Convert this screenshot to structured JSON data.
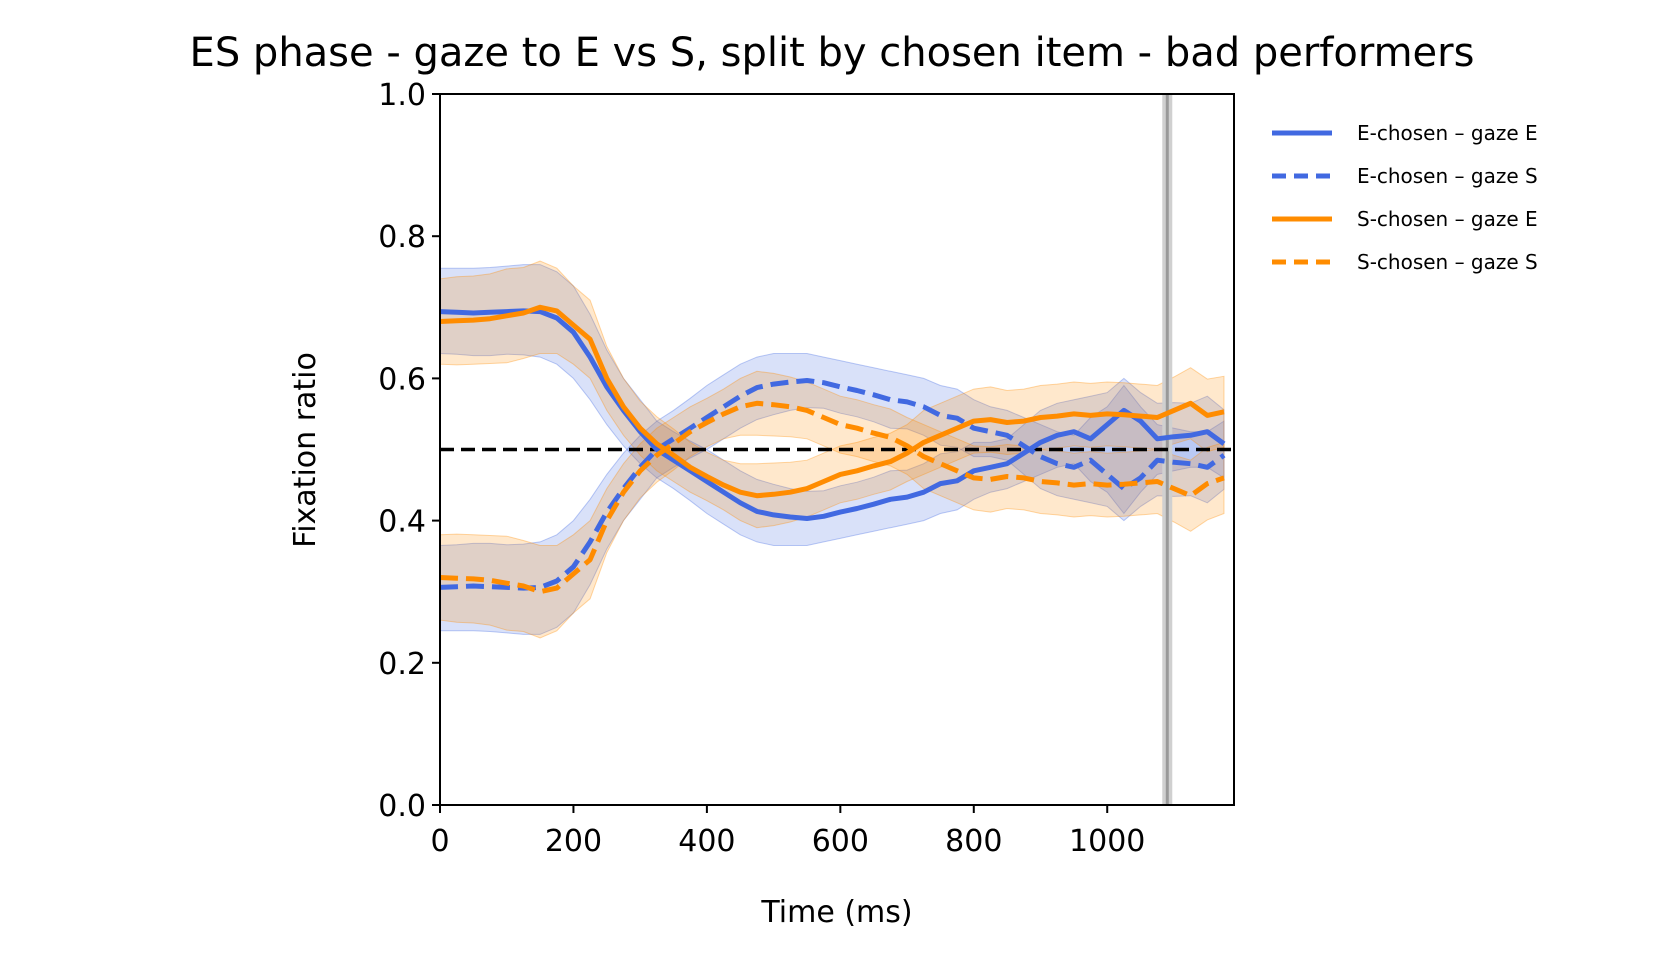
{
  "chart_data": {
    "type": "line",
    "title": "ES phase - gaze to E vs S, split by chosen item - bad performers",
    "xlabel": "Time (ms)",
    "ylabel": "Fixation ratio",
    "xlim": [
      0,
      1190
    ],
    "ylim": [
      0,
      1
    ],
    "xticks": [
      0,
      200,
      400,
      600,
      800,
      1000
    ],
    "xtick_labels": [
      "0",
      "200",
      "400",
      "600",
      "800",
      "1000"
    ],
    "yticks": [
      0,
      0.2,
      0.4,
      0.6,
      0.8,
      1.0
    ],
    "ytick_labels": [
      "0.0",
      "0.2",
      "0.4",
      "0.6",
      "0.8",
      "1.0"
    ],
    "grid": false,
    "legend_position": "outside-right",
    "reference_line": {
      "y": 0.5,
      "style": "dashed",
      "color": "#000000"
    },
    "vertical_marker": {
      "x": 1090,
      "color": "#999999"
    },
    "x": [
      0,
      25,
      50,
      75,
      100,
      125,
      150,
      175,
      200,
      225,
      250,
      275,
      300,
      325,
      350,
      375,
      400,
      425,
      450,
      475,
      500,
      525,
      550,
      575,
      600,
      625,
      650,
      675,
      700,
      725,
      750,
      775,
      800,
      825,
      850,
      875,
      900,
      925,
      950,
      975,
      1000,
      1025,
      1050,
      1075,
      1100,
      1125,
      1150,
      1175
    ],
    "series": [
      {
        "name": "E-chosen – gaze E",
        "color": "#4169E1",
        "dash": "solid",
        "values": [
          0.694,
          0.693,
          0.692,
          0.693,
          0.694,
          0.695,
          0.694,
          0.685,
          0.665,
          0.63,
          0.588,
          0.555,
          0.525,
          0.5,
          0.485,
          0.47,
          0.455,
          0.44,
          0.425,
          0.413,
          0.408,
          0.405,
          0.403,
          0.406,
          0.412,
          0.417,
          0.423,
          0.43,
          0.433,
          0.44,
          0.452,
          0.456,
          0.47,
          0.475,
          0.48,
          0.495,
          0.51,
          0.52,
          0.525,
          0.515,
          0.535,
          0.555,
          0.54,
          0.515,
          0.518,
          0.52,
          0.525,
          0.508
        ],
        "lower": [
          0.635,
          0.634,
          0.632,
          0.632,
          0.634,
          0.633,
          0.63,
          0.62,
          0.6,
          0.57,
          0.535,
          0.505,
          0.48,
          0.46,
          0.445,
          0.428,
          0.41,
          0.395,
          0.38,
          0.37,
          0.365,
          0.365,
          0.365,
          0.37,
          0.375,
          0.38,
          0.385,
          0.39,
          0.395,
          0.4,
          0.41,
          0.415,
          0.43,
          0.44,
          0.445,
          0.455,
          0.465,
          0.475,
          0.48,
          0.455,
          0.44,
          0.41,
          0.44,
          0.465,
          0.47,
          0.475,
          0.475,
          0.46
        ],
        "upper": [
          0.755,
          0.755,
          0.755,
          0.756,
          0.758,
          0.76,
          0.76,
          0.75,
          0.73,
          0.69,
          0.64,
          0.6,
          0.57,
          0.54,
          0.525,
          0.512,
          0.5,
          0.485,
          0.47,
          0.458,
          0.451,
          0.445,
          0.441,
          0.442,
          0.449,
          0.454,
          0.461,
          0.47,
          0.471,
          0.48,
          0.494,
          0.497,
          0.51,
          0.51,
          0.515,
          0.535,
          0.555,
          0.565,
          0.57,
          0.575,
          0.58,
          0.6,
          0.58,
          0.565,
          0.566,
          0.565,
          0.575,
          0.556
        ]
      },
      {
        "name": "E-chosen – gaze S",
        "color": "#4169E1",
        "dash": "dashed",
        "values": [
          0.306,
          0.307,
          0.308,
          0.307,
          0.306,
          0.305,
          0.306,
          0.315,
          0.335,
          0.37,
          0.412,
          0.445,
          0.475,
          0.5,
          0.515,
          0.53,
          0.545,
          0.56,
          0.575,
          0.587,
          0.592,
          0.595,
          0.597,
          0.594,
          0.588,
          0.583,
          0.577,
          0.57,
          0.567,
          0.56,
          0.548,
          0.544,
          0.53,
          0.525,
          0.52,
          0.505,
          0.49,
          0.48,
          0.475,
          0.485,
          0.465,
          0.445,
          0.46,
          0.485,
          0.482,
          0.48,
          0.475,
          0.492
        ],
        "lower": [
          0.245,
          0.245,
          0.245,
          0.244,
          0.242,
          0.24,
          0.24,
          0.25,
          0.27,
          0.31,
          0.36,
          0.4,
          0.43,
          0.46,
          0.475,
          0.488,
          0.5,
          0.515,
          0.53,
          0.542,
          0.549,
          0.555,
          0.559,
          0.558,
          0.551,
          0.546,
          0.539,
          0.53,
          0.529,
          0.52,
          0.506,
          0.503,
          0.49,
          0.49,
          0.485,
          0.465,
          0.445,
          0.435,
          0.43,
          0.425,
          0.42,
          0.4,
          0.42,
          0.435,
          0.434,
          0.435,
          0.425,
          0.444
        ],
        "upper": [
          0.365,
          0.366,
          0.368,
          0.368,
          0.366,
          0.367,
          0.37,
          0.38,
          0.4,
          0.43,
          0.465,
          0.495,
          0.52,
          0.54,
          0.555,
          0.572,
          0.59,
          0.605,
          0.62,
          0.63,
          0.635,
          0.635,
          0.635,
          0.63,
          0.625,
          0.62,
          0.615,
          0.61,
          0.605,
          0.6,
          0.59,
          0.585,
          0.57,
          0.56,
          0.555,
          0.545,
          0.535,
          0.525,
          0.52,
          0.545,
          0.56,
          0.59,
          0.56,
          0.535,
          0.53,
          0.525,
          0.525,
          0.54
        ]
      },
      {
        "name": "S-chosen – gaze E",
        "color": "#FF8C00",
        "dash": "solid",
        "values": [
          0.68,
          0.681,
          0.682,
          0.684,
          0.688,
          0.692,
          0.7,
          0.695,
          0.675,
          0.655,
          0.6,
          0.56,
          0.53,
          0.508,
          0.492,
          0.475,
          0.462,
          0.45,
          0.44,
          0.435,
          0.437,
          0.44,
          0.445,
          0.455,
          0.465,
          0.47,
          0.477,
          0.483,
          0.495,
          0.51,
          0.52,
          0.53,
          0.54,
          0.542,
          0.538,
          0.54,
          0.545,
          0.547,
          0.55,
          0.548,
          0.55,
          0.549,
          0.547,
          0.545,
          0.555,
          0.565,
          0.548,
          0.553
        ],
        "lower": [
          0.62,
          0.619,
          0.62,
          0.621,
          0.622,
          0.628,
          0.635,
          0.635,
          0.62,
          0.6,
          0.555,
          0.52,
          0.492,
          0.47,
          0.455,
          0.44,
          0.428,
          0.415,
          0.4,
          0.39,
          0.393,
          0.398,
          0.405,
          0.415,
          0.425,
          0.43,
          0.437,
          0.443,
          0.455,
          0.465,
          0.475,
          0.485,
          0.495,
          0.496,
          0.493,
          0.495,
          0.5,
          0.502,
          0.505,
          0.503,
          0.505,
          0.504,
          0.502,
          0.5,
          0.508,
          0.515,
          0.497,
          0.503
        ],
        "upper": [
          0.74,
          0.743,
          0.744,
          0.747,
          0.754,
          0.756,
          0.765,
          0.755,
          0.73,
          0.71,
          0.645,
          0.6,
          0.568,
          0.546,
          0.529,
          0.51,
          0.496,
          0.485,
          0.48,
          0.48,
          0.481,
          0.482,
          0.485,
          0.495,
          0.505,
          0.51,
          0.517,
          0.523,
          0.535,
          0.555,
          0.565,
          0.575,
          0.585,
          0.588,
          0.583,
          0.585,
          0.59,
          0.592,
          0.595,
          0.593,
          0.595,
          0.594,
          0.592,
          0.59,
          0.602,
          0.615,
          0.599,
          0.603
        ]
      },
      {
        "name": "S-chosen – gaze S",
        "color": "#FF8C00",
        "dash": "dashed",
        "values": [
          0.32,
          0.319,
          0.318,
          0.316,
          0.312,
          0.308,
          0.3,
          0.305,
          0.325,
          0.345,
          0.4,
          0.44,
          0.47,
          0.492,
          0.508,
          0.525,
          0.538,
          0.55,
          0.56,
          0.565,
          0.563,
          0.56,
          0.555,
          0.545,
          0.535,
          0.53,
          0.523,
          0.517,
          0.505,
          0.49,
          0.48,
          0.47,
          0.46,
          0.458,
          0.462,
          0.46,
          0.455,
          0.453,
          0.45,
          0.452,
          0.45,
          0.451,
          0.453,
          0.455,
          0.445,
          0.435,
          0.452,
          0.46
        ],
        "lower": [
          0.26,
          0.257,
          0.256,
          0.253,
          0.246,
          0.244,
          0.235,
          0.245,
          0.27,
          0.29,
          0.355,
          0.4,
          0.432,
          0.454,
          0.471,
          0.49,
          0.504,
          0.515,
          0.52,
          0.52,
          0.519,
          0.518,
          0.515,
          0.505,
          0.495,
          0.49,
          0.483,
          0.477,
          0.465,
          0.445,
          0.435,
          0.425,
          0.415,
          0.412,
          0.417,
          0.415,
          0.41,
          0.408,
          0.405,
          0.407,
          0.405,
          0.406,
          0.408,
          0.41,
          0.398,
          0.385,
          0.401,
          0.41
        ],
        "upper": [
          0.38,
          0.381,
          0.38,
          0.379,
          0.378,
          0.372,
          0.365,
          0.365,
          0.38,
          0.4,
          0.445,
          0.48,
          0.508,
          0.53,
          0.545,
          0.56,
          0.572,
          0.585,
          0.6,
          0.61,
          0.607,
          0.602,
          0.595,
          0.585,
          0.575,
          0.57,
          0.563,
          0.557,
          0.545,
          0.535,
          0.525,
          0.515,
          0.505,
          0.504,
          0.507,
          0.505,
          0.5,
          0.498,
          0.495,
          0.497,
          0.495,
          0.496,
          0.498,
          0.5,
          0.492,
          0.485,
          0.503,
          0.51
        ]
      }
    ]
  }
}
